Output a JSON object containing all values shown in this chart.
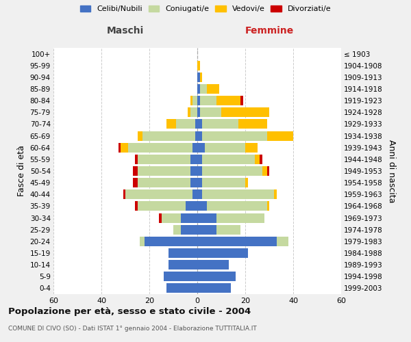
{
  "age_groups": [
    "0-4",
    "5-9",
    "10-14",
    "15-19",
    "20-24",
    "25-29",
    "30-34",
    "35-39",
    "40-44",
    "45-49",
    "50-54",
    "55-59",
    "60-64",
    "65-69",
    "70-74",
    "75-79",
    "80-84",
    "85-89",
    "90-94",
    "95-99",
    "100+"
  ],
  "birth_years": [
    "1999-2003",
    "1994-1998",
    "1989-1993",
    "1984-1988",
    "1979-1983",
    "1974-1978",
    "1969-1973",
    "1964-1968",
    "1959-1963",
    "1954-1958",
    "1949-1953",
    "1944-1948",
    "1939-1943",
    "1934-1938",
    "1929-1933",
    "1924-1928",
    "1919-1923",
    "1914-1918",
    "1909-1913",
    "1904-1908",
    "≤ 1903"
  ],
  "colors": {
    "celibi": "#4472c4",
    "coniugati": "#c5d9a0",
    "vedovi": "#ffc000",
    "divorziati": "#cc0000"
  },
  "males": {
    "celibi": [
      13,
      14,
      12,
      12,
      22,
      7,
      7,
      5,
      2,
      3,
      3,
      3,
      2,
      1,
      1,
      0,
      0,
      0,
      0,
      0,
      0
    ],
    "coniugati": [
      0,
      0,
      0,
      0,
      2,
      3,
      8,
      20,
      28,
      22,
      22,
      22,
      27,
      22,
      8,
      3,
      2,
      0,
      0,
      0,
      0
    ],
    "vedovi": [
      0,
      0,
      0,
      0,
      0,
      0,
      0,
      0,
      0,
      0,
      0,
      0,
      3,
      2,
      4,
      1,
      1,
      0,
      0,
      0,
      0
    ],
    "divorziati": [
      0,
      0,
      0,
      0,
      0,
      0,
      1,
      1,
      1,
      2,
      2,
      1,
      1,
      0,
      0,
      0,
      0,
      0,
      0,
      0,
      0
    ]
  },
  "females": {
    "celibi": [
      14,
      16,
      13,
      21,
      33,
      8,
      8,
      4,
      2,
      2,
      2,
      2,
      3,
      2,
      2,
      1,
      1,
      1,
      1,
      0,
      0
    ],
    "coniugati": [
      0,
      0,
      0,
      0,
      5,
      10,
      20,
      25,
      30,
      18,
      25,
      22,
      17,
      27,
      15,
      9,
      7,
      3,
      0,
      0,
      0
    ],
    "vedovi": [
      0,
      0,
      0,
      0,
      0,
      0,
      0,
      1,
      1,
      1,
      2,
      2,
      5,
      11,
      12,
      20,
      10,
      5,
      1,
      1,
      0
    ],
    "divorziati": [
      0,
      0,
      0,
      0,
      0,
      0,
      0,
      0,
      0,
      0,
      1,
      1,
      0,
      0,
      0,
      0,
      1,
      0,
      0,
      0,
      0
    ]
  },
  "xlim": 60,
  "title_main": "Popolazione per età, sesso e stato civile - 2004",
  "title_sub": "COMUNE DI CIVO (SO) - Dati ISTAT 1° gennaio 2004 - Elaborazione TUTTITALIA.IT",
  "xlabel_left": "Maschi",
  "xlabel_right": "Femmine",
  "ylabel_left": "Fasce di età",
  "ylabel_right": "Anni di nascita",
  "legend_labels": [
    "Celibi/Nubili",
    "Coniugati/e",
    "Vedovi/e",
    "Divorziati/e"
  ],
  "bg_color": "#f0f0f0",
  "plot_bg": "#ffffff"
}
